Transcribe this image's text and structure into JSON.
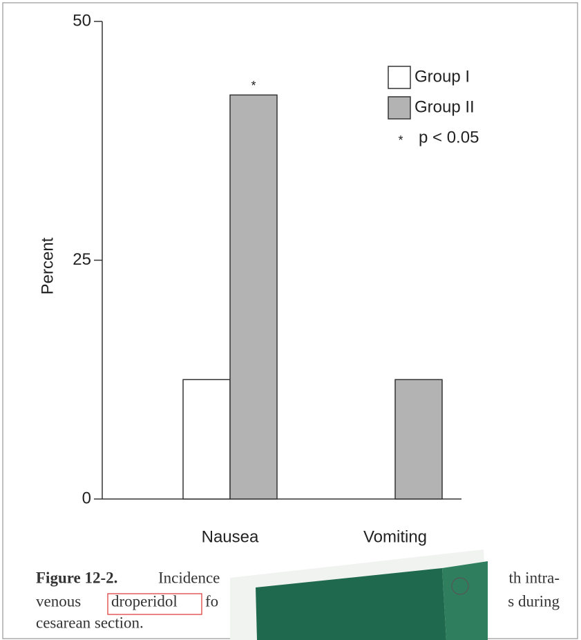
{
  "chart_data": {
    "type": "bar",
    "ylabel": "Percent",
    "categories": [
      "Nausea",
      "Vomiting"
    ],
    "series": [
      {
        "name": "Group I",
        "color": "#ffffff",
        "values": [
          12.5,
          0
        ]
      },
      {
        "name": "Group II",
        "color": "#b3b3b3",
        "values": [
          42.3,
          12.5
        ]
      }
    ],
    "ylim": [
      0,
      50
    ],
    "yticks": [
      0,
      25,
      50
    ],
    "significance": {
      "symbol": "*",
      "label": "p < 0.05"
    }
  },
  "caption": {
    "lines": [
      [
        "Figure 12-2.",
        "Incidence",
        "th intra-"
      ],
      [
        "venous",
        "droperidol",
        "fo",
        "s during"
      ],
      [
        "cesarean section."
      ]
    ]
  }
}
